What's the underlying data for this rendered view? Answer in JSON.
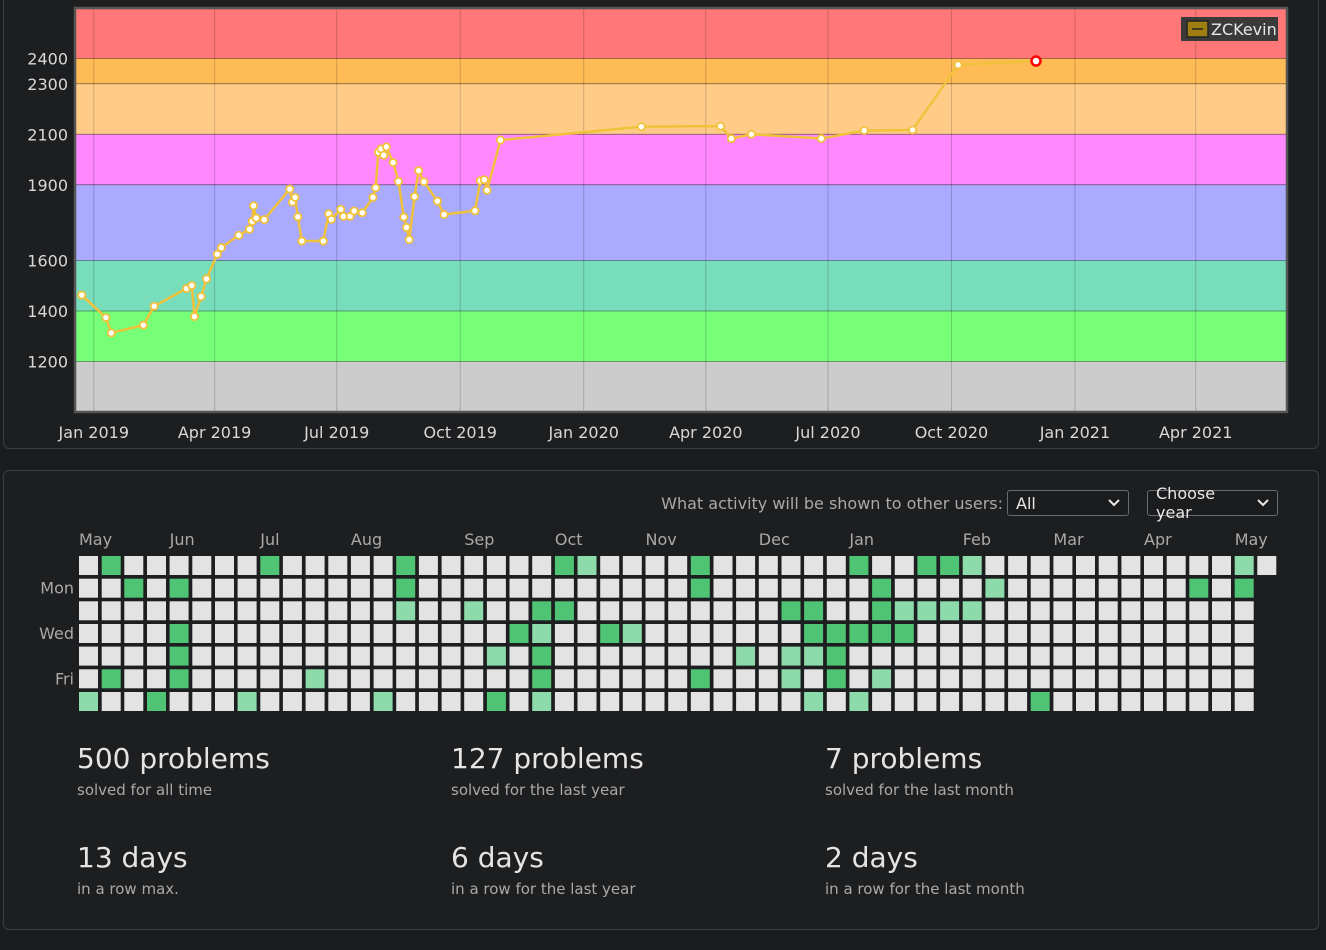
{
  "rating_chart": {
    "chart_data": {
      "type": "line",
      "series": [
        {
          "name": "ZCKevin",
          "color": "#f0c23c",
          "points": [
            [
              "2018-12-23",
              1463
            ],
            [
              "2019-01-10",
              1374
            ],
            [
              "2019-01-14",
              1313
            ],
            [
              "2019-02-07",
              1344
            ],
            [
              "2019-02-15",
              1419
            ],
            [
              "2019-03-11",
              1489
            ],
            [
              "2019-03-15",
              1501
            ],
            [
              "2019-03-17",
              1378
            ],
            [
              "2019-03-22",
              1457
            ],
            [
              "2019-03-26",
              1527
            ],
            [
              "2019-04-03",
              1625
            ],
            [
              "2019-04-06",
              1651
            ],
            [
              "2019-04-19",
              1700
            ],
            [
              "2019-04-27",
              1724
            ],
            [
              "2019-04-29",
              1755
            ],
            [
              "2019-04-30",
              1817
            ],
            [
              "2019-05-02",
              1768
            ],
            [
              "2019-05-08",
              1762
            ],
            [
              "2019-05-27",
              1883
            ],
            [
              "2019-05-29",
              1831
            ],
            [
              "2019-05-31",
              1850
            ],
            [
              "2019-06-02",
              1773
            ],
            [
              "2019-06-05",
              1677
            ],
            [
              "2019-06-21",
              1677
            ],
            [
              "2019-06-25",
              1785
            ],
            [
              "2019-06-27",
              1763
            ],
            [
              "2019-07-04",
              1803
            ],
            [
              "2019-07-06",
              1775
            ],
            [
              "2019-07-11",
              1775
            ],
            [
              "2019-07-14",
              1796
            ],
            [
              "2019-07-20",
              1789
            ],
            [
              "2019-07-28",
              1850
            ],
            [
              "2019-07-30",
              1888
            ],
            [
              "2019-08-01",
              2029
            ],
            [
              "2019-08-03",
              2042
            ],
            [
              "2019-08-05",
              2017
            ],
            [
              "2019-08-07",
              2050
            ],
            [
              "2019-08-12",
              1988
            ],
            [
              "2019-08-16",
              1913
            ],
            [
              "2019-08-20",
              1772
            ],
            [
              "2019-08-22",
              1731
            ],
            [
              "2019-08-24",
              1683
            ],
            [
              "2019-08-28",
              1853
            ],
            [
              "2019-08-31",
              1956
            ],
            [
              "2019-09-04",
              1912
            ],
            [
              "2019-09-14",
              1835
            ],
            [
              "2019-09-19",
              1782
            ],
            [
              "2019-10-12",
              1797
            ],
            [
              "2019-10-16",
              1916
            ],
            [
              "2019-10-19",
              1920
            ],
            [
              "2019-10-21",
              1878
            ],
            [
              "2019-10-31",
              2077
            ],
            [
              "2020-02-13",
              2130
            ],
            [
              "2020-04-12",
              2132
            ],
            [
              "2020-04-20",
              2083
            ],
            [
              "2020-05-05",
              2100
            ],
            [
              "2020-06-26",
              2083
            ],
            [
              "2020-07-28",
              2115
            ],
            [
              "2020-09-02",
              2117
            ],
            [
              "2020-10-06",
              2375
            ],
            [
              "2020-12-03",
              2390
            ]
          ]
        }
      ],
      "x_ticks": [
        "Jan 2019",
        "Apr 2019",
        "Jul 2019",
        "Oct 2019",
        "Jan 2020",
        "Apr 2020",
        "Jul 2020",
        "Oct 2020",
        "Jan 2021",
        "Apr 2021"
      ],
      "y_ticks": [
        1200,
        1400,
        1600,
        1900,
        2100,
        2300,
        2400
      ],
      "ylim": [
        1000,
        2600
      ],
      "grid": true,
      "legend_position": "top-right",
      "rating_bands": [
        {
          "from": 1000,
          "to": 1200,
          "color": "#cccccc"
        },
        {
          "from": 1200,
          "to": 1400,
          "color": "#77ff77"
        },
        {
          "from": 1400,
          "to": 1600,
          "color": "#77ddbb"
        },
        {
          "from": 1600,
          "to": 1900,
          "color": "#aaaaff"
        },
        {
          "from": 1900,
          "to": 2100,
          "color": "#ff88ff"
        },
        {
          "from": 2100,
          "to": 2300,
          "color": "#ffcc88"
        },
        {
          "from": 2300,
          "to": 2400,
          "color": "#ffbb55"
        },
        {
          "from": 2400,
          "to": 2600,
          "color": "#ff7777"
        }
      ],
      "highlight_last_point_color": "#ff0000"
    }
  },
  "activity": {
    "visibility_label": "What activity will be shown to other users:",
    "visibility_value": "All",
    "year_value": "Choose year",
    "month_labels": [
      {
        "label": "May",
        "week": 0
      },
      {
        "label": "Jun",
        "week": 4
      },
      {
        "label": "Jul",
        "week": 8
      },
      {
        "label": "Aug",
        "week": 12
      },
      {
        "label": "Sep",
        "week": 17
      },
      {
        "label": "Oct",
        "week": 21
      },
      {
        "label": "Nov",
        "week": 25
      },
      {
        "label": "Dec",
        "week": 30
      },
      {
        "label": "Jan",
        "week": 34
      },
      {
        "label": "Feb",
        "week": 39
      },
      {
        "label": "Mar",
        "week": 43
      },
      {
        "label": "Apr",
        "week": 47
      },
      {
        "label": "May",
        "week": 51
      }
    ],
    "day_labels": [
      {
        "label": "Mon",
        "row": 1
      },
      {
        "label": "Wed",
        "row": 3
      },
      {
        "label": "Fri",
        "row": 5
      }
    ],
    "weeks": 53,
    "colors": {
      "empty": "#e3e3e3",
      "light": "#8ddbaa",
      "dark": "#4fc474"
    },
    "active_cells": [
      [
        1,
        0,
        2
      ],
      [
        2,
        1,
        2
      ],
      [
        4,
        1,
        2
      ],
      [
        4,
        3,
        2
      ],
      [
        4,
        4,
        2
      ],
      [
        1,
        5,
        2
      ],
      [
        4,
        5,
        2
      ],
      [
        0,
        6,
        1
      ],
      [
        3,
        6,
        2
      ],
      [
        7,
        6,
        1
      ],
      [
        8,
        0,
        2
      ],
      [
        10,
        5,
        1
      ],
      [
        13,
        6,
        1
      ],
      [
        14,
        0,
        2
      ],
      [
        14,
        1,
        2
      ],
      [
        14,
        2,
        1
      ],
      [
        17,
        2,
        1
      ],
      [
        18,
        4,
        1
      ],
      [
        18,
        6,
        2
      ],
      [
        19,
        3,
        2
      ],
      [
        20,
        2,
        2
      ],
      [
        20,
        3,
        1
      ],
      [
        20,
        4,
        2
      ],
      [
        20,
        5,
        2
      ],
      [
        20,
        6,
        1
      ],
      [
        21,
        0,
        2
      ],
      [
        21,
        2,
        2
      ],
      [
        22,
        0,
        1
      ],
      [
        23,
        3,
        2
      ],
      [
        24,
        3,
        1
      ],
      [
        27,
        0,
        2
      ],
      [
        27,
        1,
        2
      ],
      [
        27,
        5,
        2
      ],
      [
        29,
        4,
        1
      ],
      [
        31,
        2,
        2
      ],
      [
        31,
        4,
        1
      ],
      [
        31,
        5,
        1
      ],
      [
        32,
        2,
        2
      ],
      [
        32,
        3,
        2
      ],
      [
        32,
        4,
        1
      ],
      [
        32,
        6,
        1
      ],
      [
        33,
        3,
        2
      ],
      [
        33,
        4,
        2
      ],
      [
        33,
        5,
        2
      ],
      [
        34,
        0,
        2
      ],
      [
        34,
        3,
        2
      ],
      [
        34,
        6,
        1
      ],
      [
        35,
        1,
        2
      ],
      [
        35,
        2,
        2
      ],
      [
        35,
        3,
        2
      ],
      [
        35,
        5,
        1
      ],
      [
        36,
        2,
        1
      ],
      [
        36,
        3,
        2
      ],
      [
        37,
        0,
        2
      ],
      [
        37,
        2,
        1
      ],
      [
        38,
        0,
        2
      ],
      [
        38,
        2,
        1
      ],
      [
        39,
        2,
        1
      ],
      [
        39,
        0,
        1
      ],
      [
        40,
        1,
        1
      ],
      [
        42,
        6,
        2
      ],
      [
        49,
        1,
        2
      ],
      [
        51,
        0,
        1
      ],
      [
        51,
        1,
        2
      ]
    ],
    "extra_cell_last_week_rows": 1
  },
  "stats": [
    {
      "big": "500 problems",
      "small": "solved for all time"
    },
    {
      "big": "127 problems",
      "small": "solved for the last year"
    },
    {
      "big": "7 problems",
      "small": "solved for the last month"
    },
    {
      "big": "13 days",
      "small": "in a row max."
    },
    {
      "big": "6 days",
      "small": "in a row for the last year"
    },
    {
      "big": "2 days",
      "small": "in a row for the last month"
    }
  ]
}
